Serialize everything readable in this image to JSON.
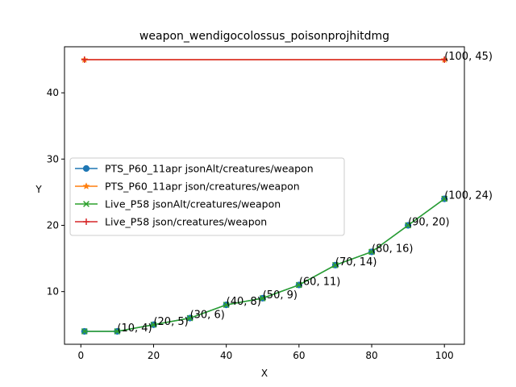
{
  "chart_data": {
    "type": "line",
    "title": "weapon_wendigocolossus_poisonprojhitdmg",
    "xlabel": "X",
    "ylabel": "Y",
    "xlim": [
      -4.5,
      105.5
    ],
    "ylim": [
      2.05,
      46.95
    ],
    "xticks": [
      0,
      20,
      40,
      60,
      80,
      100
    ],
    "yticks": [
      10,
      20,
      30,
      40
    ],
    "grid": false,
    "legend_position": "center-left",
    "series": [
      {
        "name": "PTS_P60_11apr jsonAlt/creatures/weapon",
        "color": "#1f77b4",
        "marker": "circle",
        "x": [
          1,
          10,
          20,
          30,
          40,
          50,
          60,
          70,
          80,
          90,
          100
        ],
        "y": [
          4,
          4,
          5,
          6,
          8,
          9,
          11,
          14,
          16,
          20,
          24
        ]
      },
      {
        "name": "PTS_P60_11apr json/creatures/weapon",
        "color": "#ff7f0e",
        "marker": "star",
        "x": [
          1,
          100
        ],
        "y": [
          45,
          45
        ]
      },
      {
        "name": "Live_P58 jsonAlt/creatures/weapon",
        "color": "#2ca02c",
        "marker": "x",
        "x": [
          1,
          10,
          20,
          30,
          40,
          50,
          60,
          70,
          80,
          90,
          100
        ],
        "y": [
          4,
          4,
          5,
          6,
          8,
          9,
          11,
          14,
          16,
          20,
          24
        ]
      },
      {
        "name": "Live_P58 json/creatures/weapon",
        "color": "#d62728",
        "marker": "plus",
        "x": [
          1,
          100
        ],
        "y": [
          45,
          45
        ]
      }
    ],
    "annotations": [
      {
        "text": "(10, 4)",
        "x": 10,
        "y": 4
      },
      {
        "text": "(20, 5)",
        "x": 20,
        "y": 5
      },
      {
        "text": "(30, 6)",
        "x": 30,
        "y": 6
      },
      {
        "text": "(40, 8)",
        "x": 40,
        "y": 8
      },
      {
        "text": "(50, 9)",
        "x": 50,
        "y": 9
      },
      {
        "text": "(60, 11)",
        "x": 60,
        "y": 11
      },
      {
        "text": "(70, 14)",
        "x": 70,
        "y": 14
      },
      {
        "text": "(80, 16)",
        "x": 80,
        "y": 16
      },
      {
        "text": "(90, 20)",
        "x": 90,
        "y": 20
      },
      {
        "text": "(100, 24)",
        "x": 100,
        "y": 24
      },
      {
        "text": "(100, 45)",
        "x": 100,
        "y": 45
      }
    ]
  }
}
